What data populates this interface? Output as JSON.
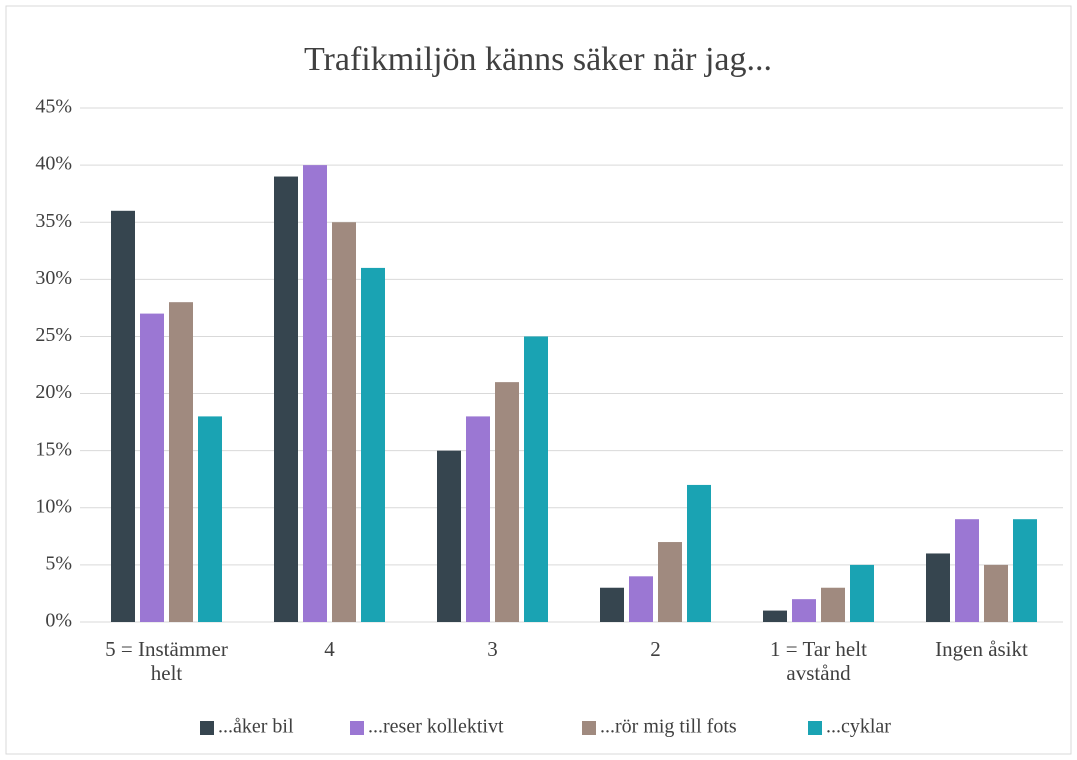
{
  "chart_data": {
    "type": "bar",
    "title": "Trafikmiljön känns säker när jag...",
    "categories": [
      "5 = Instämmer helt",
      "4",
      "3",
      "2",
      "1 = Tar helt avstånd",
      "Ingen åsikt"
    ],
    "series": [
      {
        "name": "...åker bil",
        "color": "#36454f",
        "values": [
          36,
          39,
          15,
          3,
          1,
          6
        ]
      },
      {
        "name": "...reser kollektivt",
        "color": "#9b77d3",
        "values": [
          27,
          40,
          18,
          4,
          2,
          9
        ]
      },
      {
        "name": "...rör mig till fots",
        "color": "#a08a7f",
        "values": [
          28,
          35,
          21,
          7,
          3,
          5
        ]
      },
      {
        "name": "...cyklar",
        "color": "#1aa3b3",
        "values": [
          18,
          31,
          25,
          12,
          5,
          9
        ]
      }
    ],
    "ylim": [
      0,
      45
    ],
    "yticks": [
      {
        "value": 0,
        "label": "0%"
      },
      {
        "value": 5,
        "label": "5%"
      },
      {
        "value": 10,
        "label": "10%"
      },
      {
        "value": 15,
        "label": "15%"
      },
      {
        "value": 20,
        "label": "20%"
      },
      {
        "value": 25,
        "label": "25%"
      },
      {
        "value": 30,
        "label": "30%"
      },
      {
        "value": 35,
        "label": "35%"
      },
      {
        "value": 40,
        "label": "40%"
      },
      {
        "value": 45,
        "label": "45%"
      }
    ],
    "grid": true,
    "legend": "bottom"
  }
}
